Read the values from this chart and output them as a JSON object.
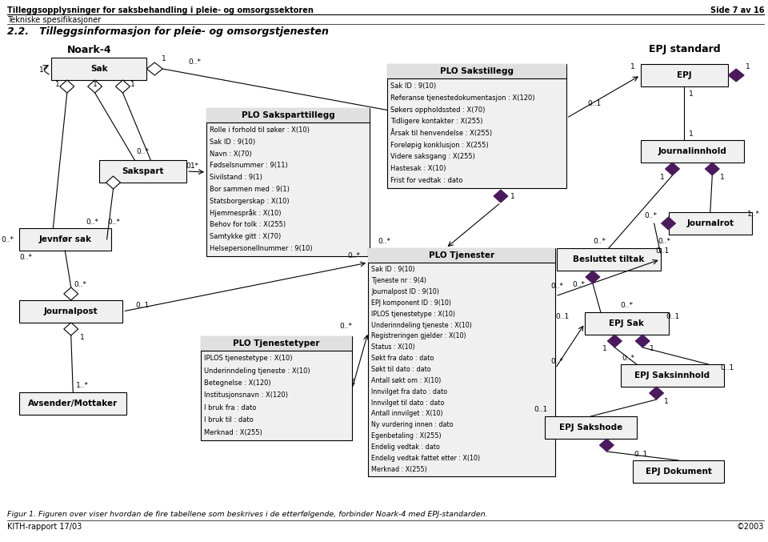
{
  "title_line1": "Tilleggsopplysninger for saksbehandling i pleie- og omsorgssektoren",
  "title_line1_right": "Side 7 av 16",
  "title_line2": "Tekniske spesifikasjoner",
  "section_title": "2.2.   Tilleggsinformasjon for pleie- og omsorgstjenesten",
  "caption": "Figur 1. Figuren over viser hvordan de fire tabellene som beskrives i de etterfølgende, forbinder Noark-4 med EPJ-standarden.",
  "footer_left": "KITH-rapport 17/03",
  "footer_right": "©2003",
  "plo_sakspart_fields": [
    "Rolle i forhold til søker : X(10)",
    "Sak ID : 9(10)",
    "Navn : X(70)",
    "Fødselsnummer : 9(11)",
    "Sivilstand : 9(1)",
    "Bor sammen med : 9(1)",
    "Statsborgerskap : X(10)",
    "Hjemmespråk : X(10)",
    "Behov for tolk : X(255)",
    "Samtykke gitt : X(70)",
    "Helsepersonellnummer : 9(10)"
  ],
  "plo_sakst_fields": [
    "Sak ID : 9(10)",
    "Referanse tjenestedokumentasjon : X(120)",
    "Søkers oppholdssted : X(70)",
    "Tidligere kontakter : X(255)",
    "Årsak til henvendelse : X(255)",
    "Foreløpig konklusjon : X(255)",
    "Videre saksgang : X(255)",
    "Hastesak : X(10)",
    "Frist for vedtak : dato"
  ],
  "plo_tj_fields": [
    "Sak ID : 9(10)",
    "Tjeneste nr : 9(4)",
    "Journalpost ID : 9(10)",
    "EPJ komponent ID : 9(10)",
    "IPLOS tjenestetype : X(10)",
    "Underinndeling tjeneste : X(10)",
    "Registreringen gjelder : X(10)",
    "Status : X(10)",
    "Søkt fra dato : dato",
    "Søkt til dato : dato",
    "Antall søkt om : X(10)",
    "Innvilget fra dato : dato",
    "Innvilget til dato : dato",
    "Antall innvilget : X(10)",
    "Ny vurdering innen : dato",
    "Egenbetaling : X(255)",
    "Endelig vedtak : dato",
    "Endelig vedtak fattet etter : X(10)",
    "Merknad : X(255)"
  ],
  "plo_tjt_fields": [
    "IPLOS tjenestetype : X(10)",
    "Underinndeling tjeneste : X(10)",
    "Betegnelse : X(120)",
    "Institusjonsnavn : X(120)",
    "I bruk fra : dato",
    "I bruk til : dato",
    "Merknad : X(255)"
  ],
  "diamond_color": "#4a1a5c",
  "box_bg": "#f0f0f0",
  "box_header_bg": "#e0e0e0",
  "white": "#ffffff"
}
